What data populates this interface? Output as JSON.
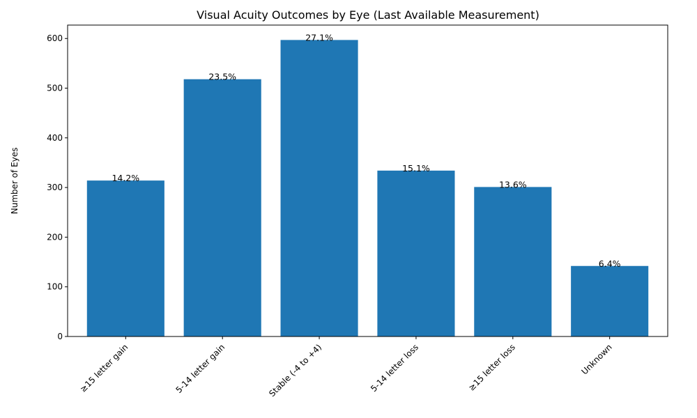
{
  "chart_data": {
    "type": "bar",
    "title": "Visual Acuity Outcomes by Eye (Last Available Measurement)",
    "xlabel": "",
    "ylabel": "Number of Eyes",
    "categories": [
      "≥15 letter gain",
      "5-14 letter gain",
      "Stable (-4 to +4)",
      "5-14 letter loss",
      "≥15 letter loss",
      "Unknown"
    ],
    "values": [
      314,
      518,
      597,
      334,
      301,
      142
    ],
    "data_labels": [
      "14.2%",
      "23.5%",
      "27.1%",
      "15.1%",
      "13.6%",
      "6.4%"
    ],
    "ylim": [
      0,
      627
    ],
    "yticks": [
      0,
      100,
      200,
      300,
      400,
      500,
      600
    ],
    "bar_color": "#1f77b4",
    "grid": false,
    "legend": "none"
  }
}
